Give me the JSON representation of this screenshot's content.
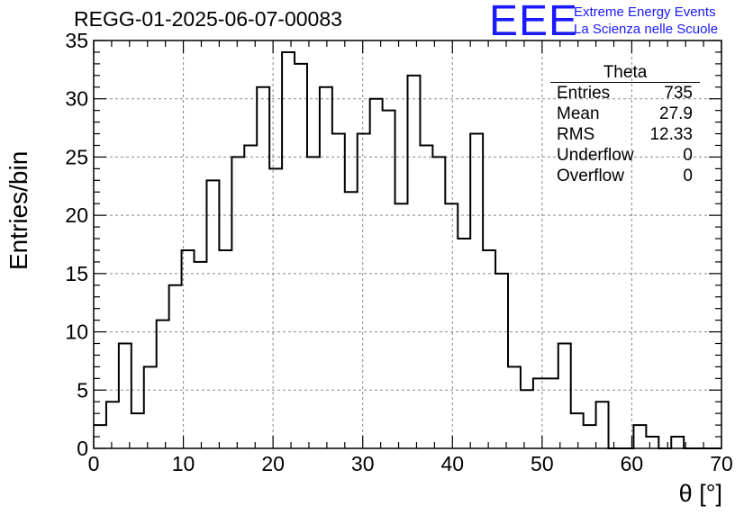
{
  "header": {
    "title": "REGG-01-2025-06-07-00083",
    "logo": "EEE",
    "logo_line1": "Extreme Energy Events",
    "logo_line2": "La Scienza nelle Scuole"
  },
  "stats_box": {
    "title": "Theta",
    "rows": [
      {
        "label": "Entries",
        "value": "735"
      },
      {
        "label": "Mean",
        "value": "27.9"
      },
      {
        "label": "RMS",
        "value": "12.33"
      },
      {
        "label": "Underflow",
        "value": "0"
      },
      {
        "label": "Overflow",
        "value": "0"
      }
    ]
  },
  "colors": {
    "logo": "#1a1aff",
    "line": "#000000",
    "grid": "#888888"
  },
  "chart_data": {
    "type": "bar",
    "style": "step-histogram",
    "title": "REGG-01-2025-06-07-00083",
    "xlabel": "θ [°]",
    "ylabel": "Entries/bin",
    "xlim": [
      0,
      70
    ],
    "ylim": [
      0,
      35
    ],
    "grid": true,
    "bin_width": 1.4,
    "bin_edges_start": 0,
    "values": [
      2,
      4,
      9,
      3,
      7,
      11,
      14,
      17,
      16,
      23,
      17,
      25,
      26,
      31,
      24,
      34,
      33,
      25,
      31,
      27,
      22,
      27,
      30,
      29,
      21,
      32,
      26,
      25,
      21,
      18,
      27,
      17,
      15,
      7,
      5,
      6,
      6,
      9,
      3,
      2,
      4,
      0,
      0,
      2,
      1,
      0,
      1,
      0,
      0,
      0
    ],
    "xticks": [
      "0",
      "10",
      "20",
      "30",
      "40",
      "50",
      "60",
      "70"
    ],
    "yticks": [
      "0",
      "5",
      "10",
      "15",
      "20",
      "25",
      "30",
      "35"
    ]
  }
}
